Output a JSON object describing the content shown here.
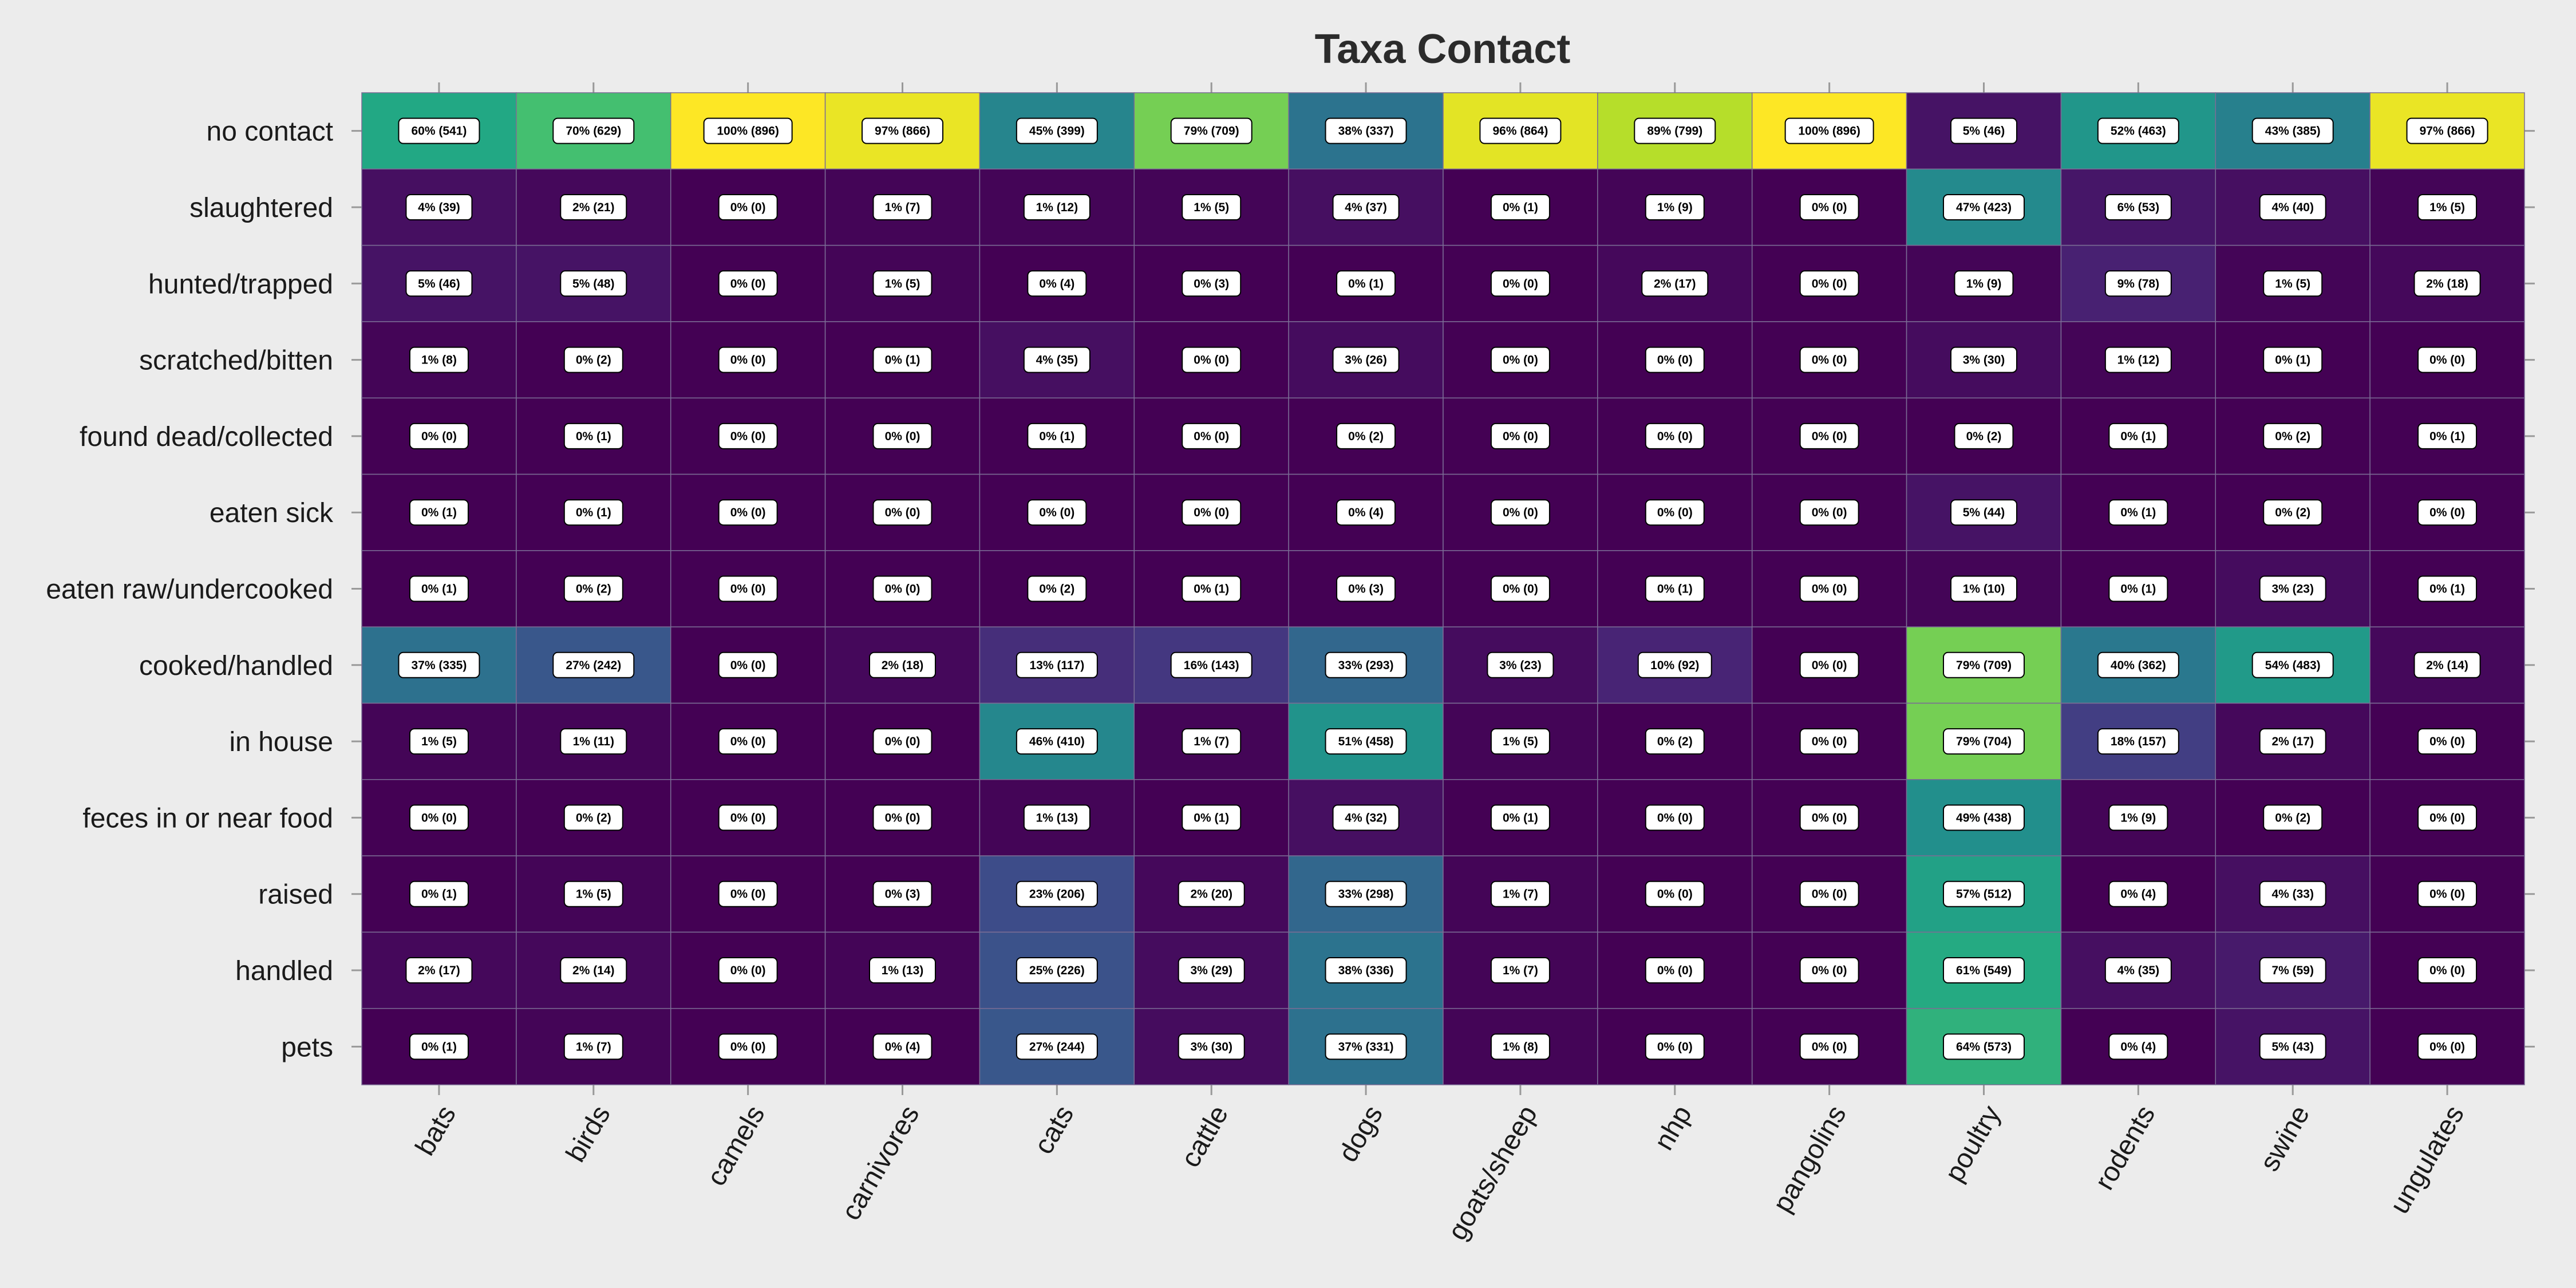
{
  "chart_data": {
    "type": "heatmap",
    "title": "Taxa Contact",
    "colormap": "viridis",
    "colors": {
      "background": "#ececec",
      "low": "#440154",
      "high": "#fde725"
    },
    "x_categories": [
      "bats",
      "birds",
      "camels",
      "carnivores",
      "cats",
      "cattle",
      "dogs",
      "goats/sheep",
      "nhp",
      "pangolins",
      "poultry",
      "rodents",
      "swine",
      "ungulates"
    ],
    "y_categories": [
      "no contact",
      "slaughtered",
      "hunted/trapped",
      "scratched/bitten",
      "found dead/collected",
      "eaten sick",
      "eaten raw/undercooked",
      "cooked/handled",
      "in house",
      "feces in or near food",
      "raised",
      "handled",
      "pets"
    ],
    "percent": [
      [
        60,
        70,
        100,
        97,
        45,
        79,
        38,
        96,
        89,
        100,
        5,
        52,
        43,
        97
      ],
      [
        4,
        2,
        0,
        1,
        1,
        1,
        4,
        0,
        1,
        0,
        47,
        6,
        4,
        1
      ],
      [
        5,
        5,
        0,
        1,
        0,
        0,
        0,
        0,
        2,
        0,
        1,
        9,
        1,
        2
      ],
      [
        1,
        0,
        0,
        0,
        4,
        0,
        3,
        0,
        0,
        0,
        3,
        1,
        0,
        0
      ],
      [
        0,
        0,
        0,
        0,
        0,
        0,
        0,
        0,
        0,
        0,
        0,
        0,
        0,
        0
      ],
      [
        0,
        0,
        0,
        0,
        0,
        0,
        0,
        0,
        0,
        0,
        5,
        0,
        0,
        0
      ],
      [
        0,
        0,
        0,
        0,
        0,
        0,
        0,
        0,
        0,
        0,
        1,
        0,
        3,
        0
      ],
      [
        37,
        27,
        0,
        2,
        13,
        16,
        33,
        3,
        10,
        0,
        79,
        40,
        54,
        2
      ],
      [
        1,
        1,
        0,
        0,
        46,
        1,
        51,
        1,
        0,
        0,
        79,
        18,
        2,
        0
      ],
      [
        0,
        0,
        0,
        0,
        1,
        0,
        4,
        0,
        0,
        0,
        49,
        1,
        0,
        0
      ],
      [
        0,
        1,
        0,
        0,
        23,
        2,
        33,
        1,
        0,
        0,
        57,
        0,
        4,
        0
      ],
      [
        2,
        2,
        0,
        1,
        25,
        3,
        38,
        1,
        0,
        0,
        61,
        4,
        7,
        0
      ],
      [
        0,
        1,
        0,
        0,
        27,
        3,
        37,
        1,
        0,
        0,
        64,
        0,
        5,
        0
      ]
    ],
    "counts": [
      [
        541,
        629,
        896,
        866,
        399,
        709,
        337,
        864,
        799,
        896,
        46,
        463,
        385,
        866
      ],
      [
        39,
        21,
        0,
        7,
        12,
        5,
        37,
        1,
        9,
        0,
        423,
        53,
        40,
        5
      ],
      [
        46,
        48,
        0,
        5,
        4,
        3,
        1,
        0,
        17,
        0,
        9,
        78,
        5,
        18
      ],
      [
        8,
        2,
        0,
        1,
        35,
        0,
        26,
        0,
        0,
        0,
        30,
        12,
        1,
        0
      ],
      [
        0,
        1,
        0,
        0,
        1,
        0,
        2,
        0,
        0,
        0,
        2,
        1,
        2,
        1
      ],
      [
        1,
        1,
        0,
        0,
        0,
        0,
        4,
        0,
        0,
        0,
        44,
        1,
        2,
        0
      ],
      [
        1,
        2,
        0,
        0,
        2,
        1,
        3,
        0,
        1,
        0,
        10,
        1,
        23,
        1
      ],
      [
        335,
        242,
        0,
        18,
        117,
        143,
        293,
        23,
        92,
        0,
        709,
        362,
        483,
        14
      ],
      [
        5,
        11,
        0,
        0,
        410,
        7,
        458,
        5,
        2,
        0,
        704,
        157,
        17,
        0
      ],
      [
        0,
        2,
        0,
        0,
        13,
        1,
        32,
        1,
        0,
        0,
        438,
        9,
        2,
        0
      ],
      [
        1,
        5,
        0,
        3,
        206,
        20,
        298,
        7,
        0,
        0,
        512,
        4,
        33,
        0
      ],
      [
        17,
        14,
        0,
        13,
        226,
        29,
        336,
        7,
        0,
        0,
        549,
        35,
        59,
        0
      ],
      [
        1,
        7,
        0,
        4,
        244,
        30,
        331,
        8,
        0,
        0,
        573,
        4,
        43,
        0
      ]
    ],
    "cell_labels": [
      [
        "60% (541)",
        "70% (629)",
        "100% (896)",
        "97% (866)",
        "45% (399)",
        "79% (709)",
        "38% (337)",
        "96% (864)",
        "89% (799)",
        "100% (896)",
        "5% (46)",
        "52% (463)",
        "43% (385)",
        "97% (866)"
      ],
      [
        "4% (39)",
        "2% (21)",
        "0% (0)",
        "1% (7)",
        "1% (12)",
        "1% (5)",
        "4% (37)",
        "0% (1)",
        "1% (9)",
        "0% (0)",
        "47% (423)",
        "6% (53)",
        "4% (40)",
        "1% (5)"
      ],
      [
        "5% (46)",
        "5% (48)",
        "0% (0)",
        "1% (5)",
        "0% (4)",
        "0% (3)",
        "0% (1)",
        "0% (0)",
        "2% (17)",
        "0% (0)",
        "1% (9)",
        "9% (78)",
        "1% (5)",
        "2% (18)"
      ],
      [
        "1% (8)",
        "0% (2)",
        "0% (0)",
        "0% (1)",
        "4% (35)",
        "0% (0)",
        "3% (26)",
        "0% (0)",
        "0% (0)",
        "0% (0)",
        "3% (30)",
        "1% (12)",
        "0% (1)",
        "0% (0)"
      ],
      [
        "0% (0)",
        "0% (1)",
        "0% (0)",
        "0% (0)",
        "0% (1)",
        "0% (0)",
        "0% (2)",
        "0% (0)",
        "0% (0)",
        "0% (0)",
        "0% (2)",
        "0% (1)",
        "0% (2)",
        "0% (1)"
      ],
      [
        "0% (1)",
        "0% (1)",
        "0% (0)",
        "0% (0)",
        "0% (0)",
        "0% (0)",
        "0% (4)",
        "0% (0)",
        "0% (0)",
        "0% (0)",
        "5% (44)",
        "0% (1)",
        "0% (2)",
        "0% (0)"
      ],
      [
        "0% (1)",
        "0% (2)",
        "0% (0)",
        "0% (0)",
        "0% (2)",
        "0% (1)",
        "0% (3)",
        "0% (0)",
        "0% (1)",
        "0% (0)",
        "1% (10)",
        "0% (1)",
        "3% (23)",
        "0% (1)"
      ],
      [
        "37% (335)",
        "27% (242)",
        "0% (0)",
        "2% (18)",
        "13% (117)",
        "16% (143)",
        "33% (293)",
        "3% (23)",
        "10% (92)",
        "0% (0)",
        "79% (709)",
        "40% (362)",
        "54% (483)",
        "2% (14)"
      ],
      [
        "1% (5)",
        "1% (11)",
        "0% (0)",
        "0% (0)",
        "46% (410)",
        "1% (7)",
        "51% (458)",
        "1% (5)",
        "0% (2)",
        "0% (0)",
        "79% (704)",
        "18% (157)",
        "2% (17)",
        "0% (0)"
      ],
      [
        "0% (0)",
        "0% (2)",
        "0% (0)",
        "0% (0)",
        "1% (13)",
        "0% (1)",
        "4% (32)",
        "0% (1)",
        "0% (0)",
        "0% (0)",
        "49% (438)",
        "1% (9)",
        "0% (2)",
        "0% (0)"
      ],
      [
        "0% (1)",
        "1% (5)",
        "0% (0)",
        "0% (3)",
        "23% (206)",
        "2% (20)",
        "33% (298)",
        "1% (7)",
        "0% (0)",
        "0% (0)",
        "57% (512)",
        "0% (4)",
        "4% (33)",
        "0% (0)"
      ],
      [
        "2% (17)",
        "2% (14)",
        "0% (0)",
        "1% (13)",
        "25% (226)",
        "3% (29)",
        "38% (336)",
        "1% (7)",
        "0% (0)",
        "0% (0)",
        "61% (549)",
        "4% (35)",
        "7% (59)",
        "0% (0)"
      ],
      [
        "0% (1)",
        "1% (7)",
        "0% (0)",
        "0% (4)",
        "27% (244)",
        "3% (30)",
        "37% (331)",
        "1% (8)",
        "0% (0)",
        "0% (0)",
        "64% (573)",
        "0% (4)",
        "5% (43)",
        "0% (0)"
      ]
    ],
    "value_range": [
      0,
      100
    ],
    "grid": false,
    "legend": "none"
  }
}
